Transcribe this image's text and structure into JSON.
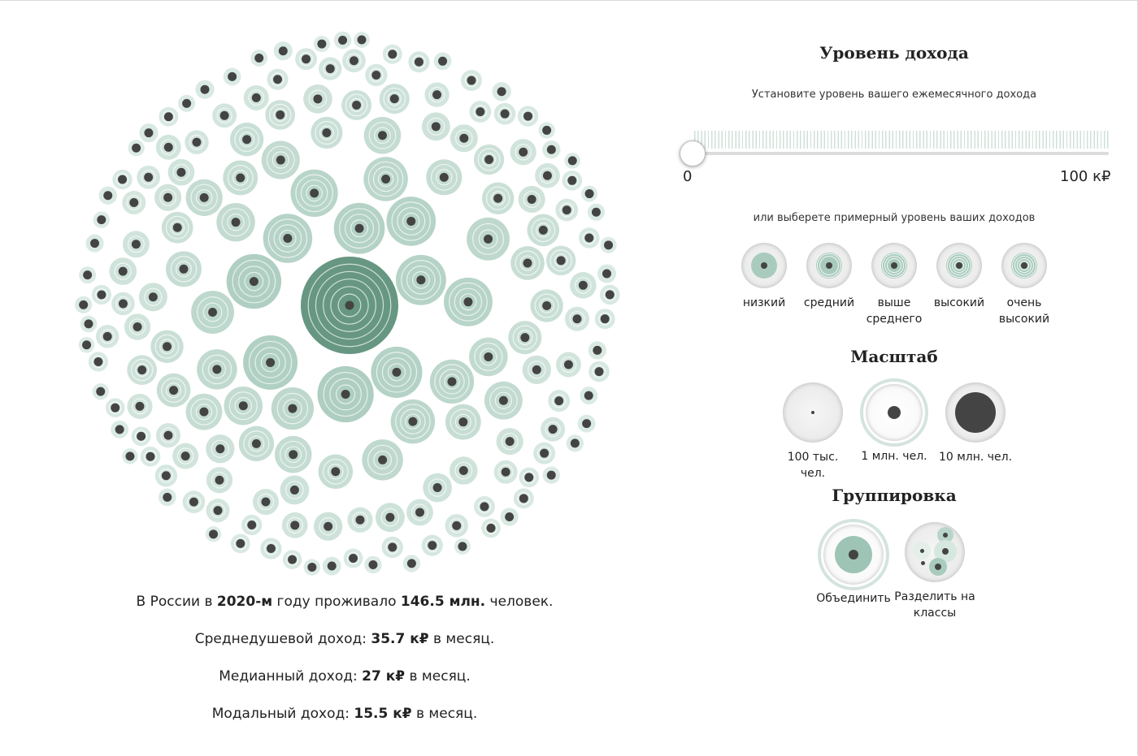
{
  "stats": {
    "line1": {
      "a": "В России в ",
      "b": "2020-м",
      "c": " году проживало ",
      "d": "146.5 млн.",
      "e": " человек."
    },
    "line2": {
      "a": "Среднедушевой доход: ",
      "b": "35.7 к₽",
      "c": " в месяц."
    },
    "line3": {
      "a": "Медианный доход: ",
      "b": "27 к₽",
      "c": " в месяц."
    },
    "line4": {
      "a": "Модальный доход: ",
      "b": "15.5 к₽",
      "c": " в месяц."
    }
  },
  "income": {
    "title": "Уровень дохода",
    "subtitle": "Установите уровень вашего ежемесячного дохода",
    "slider_min": "0",
    "slider_max": "100 к₽",
    "slider_value_fraction": 0,
    "alt_subtitle": "или выберете примерный уровень ваших доходов",
    "levels": [
      {
        "label": "низкий",
        "rings": 1
      },
      {
        "label": "средний",
        "rings": 2
      },
      {
        "label": "выше среднего",
        "rings": 3
      },
      {
        "label": "высокий",
        "rings": 4
      },
      {
        "label": "очень высокий",
        "rings": 5
      }
    ]
  },
  "scale": {
    "title": "Масштаб",
    "options": [
      {
        "label": "100 тыс. чел.",
        "selected": false
      },
      {
        "label": "1 млн. чел.",
        "selected": true
      },
      {
        "label": "10 млн. чел.",
        "selected": false
      }
    ]
  },
  "grouping": {
    "title": "Группировка",
    "options": [
      {
        "label": "Объединить",
        "selected": true
      },
      {
        "label": "Разделить на классы",
        "selected": false
      }
    ]
  },
  "colors": {
    "bubble_light": "#dcebe5",
    "bubble_mid": "#a9cbbd",
    "bubble_dark": "#679783",
    "ring": "#ffffff",
    "dot": "#444444",
    "accent_ring": "#d4e4dd"
  }
}
